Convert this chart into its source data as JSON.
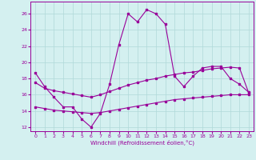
{
  "xlabel": "Windchill (Refroidissement éolien,°C)",
  "background_color": "#d4f0f0",
  "grid_color": "#b0d8d8",
  "line_color": "#990099",
  "xlim": [
    -0.5,
    23.5
  ],
  "ylim": [
    11.5,
    27.5
  ],
  "yticks": [
    12,
    14,
    16,
    18,
    20,
    22,
    24,
    26
  ],
  "xticks": [
    0,
    1,
    2,
    3,
    4,
    5,
    6,
    7,
    8,
    9,
    10,
    11,
    12,
    13,
    14,
    15,
    16,
    17,
    18,
    19,
    20,
    21,
    22,
    23
  ],
  "series1_x": [
    0,
    1,
    2,
    3,
    4,
    5,
    6,
    7,
    8,
    9,
    10,
    11,
    12,
    13,
    14,
    15,
    16,
    17,
    18,
    19,
    20,
    21,
    22,
    23
  ],
  "series1_y": [
    18.7,
    17.0,
    15.7,
    14.5,
    14.5,
    13.0,
    12.0,
    13.7,
    17.3,
    22.2,
    26.0,
    25.0,
    26.5,
    26.0,
    24.7,
    18.3,
    17.0,
    18.3,
    19.3,
    19.5,
    19.5,
    18.0,
    17.3,
    16.3
  ],
  "series2_x": [
    0,
    1,
    2,
    3,
    4,
    5,
    6,
    7,
    8,
    9,
    10,
    11,
    12,
    13,
    14,
    15,
    16,
    17,
    18,
    19,
    20,
    21,
    22,
    23
  ],
  "series2_y": [
    17.5,
    16.8,
    16.5,
    16.3,
    16.1,
    15.9,
    15.7,
    16.0,
    16.4,
    16.8,
    17.2,
    17.5,
    17.8,
    18.0,
    18.3,
    18.5,
    18.7,
    18.8,
    19.0,
    19.2,
    19.3,
    19.4,
    19.3,
    16.2
  ],
  "series3_x": [
    0,
    1,
    2,
    3,
    4,
    5,
    6,
    7,
    8,
    9,
    10,
    11,
    12,
    13,
    14,
    15,
    16,
    17,
    18,
    19,
    20,
    21,
    22,
    23
  ],
  "series3_y": [
    14.5,
    14.3,
    14.1,
    14.0,
    13.9,
    13.8,
    13.7,
    13.8,
    14.0,
    14.2,
    14.4,
    14.6,
    14.8,
    15.0,
    15.2,
    15.4,
    15.5,
    15.6,
    15.7,
    15.8,
    15.9,
    16.0,
    16.0,
    16.0
  ]
}
